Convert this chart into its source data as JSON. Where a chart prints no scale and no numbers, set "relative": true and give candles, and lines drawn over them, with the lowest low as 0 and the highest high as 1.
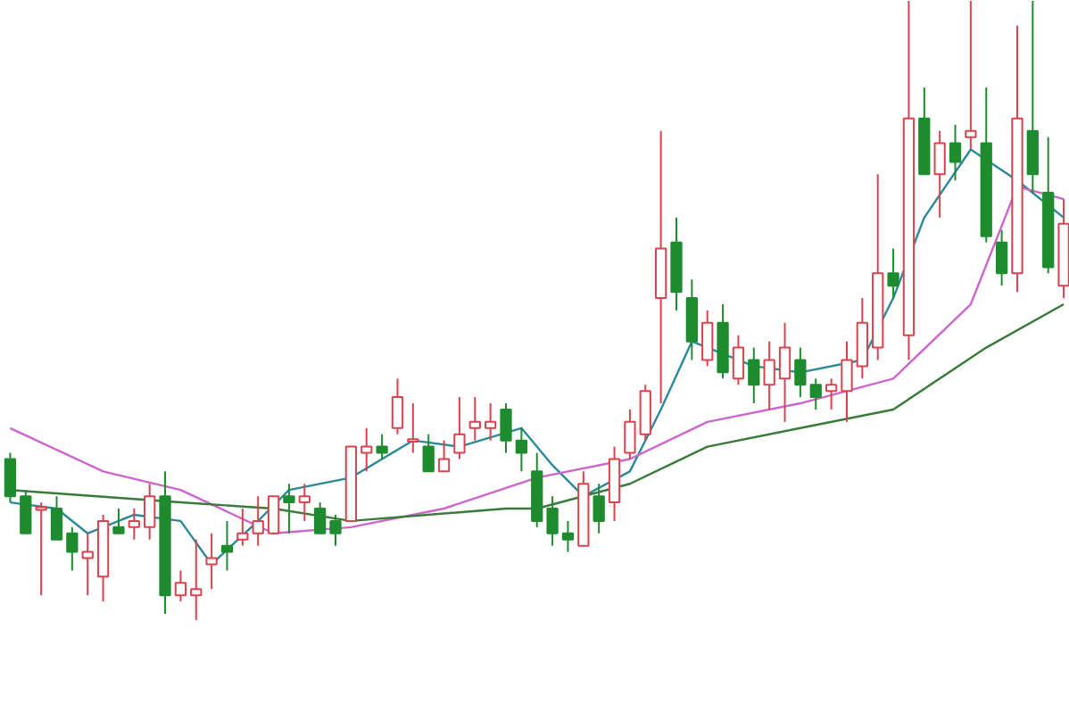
{
  "chart_data": {
    "type": "candlestick",
    "relative": true,
    "categories": [
      null,
      null,
      null,
      null,
      null,
      null,
      null,
      null,
      null,
      null,
      null,
      null,
      null,
      null,
      null,
      null,
      null,
      null,
      null,
      null,
      null,
      null,
      null,
      null,
      null,
      null,
      null,
      null,
      null,
      null,
      null,
      null,
      null,
      null,
      null,
      null,
      null,
      null,
      null,
      null,
      null,
      null,
      null,
      null,
      null,
      null,
      null,
      null,
      null,
      null,
      null,
      null,
      null,
      null,
      null,
      null,
      null,
      null,
      null,
      null,
      null,
      null,
      null,
      null,
      null,
      null,
      null,
      null,
      null
    ],
    "ohlc": [
      [
        0.26,
        0.27,
        0.19,
        0.2
      ],
      [
        0.2,
        0.21,
        0.14,
        0.14
      ],
      [
        0.18,
        0.19,
        0.04,
        0.18
      ],
      [
        0.18,
        0.2,
        0.13,
        0.13
      ],
      [
        0.14,
        0.15,
        0.08,
        0.11
      ],
      [
        0.1,
        0.14,
        0.04,
        0.11
      ],
      [
        0.07,
        0.17,
        0.03,
        0.16
      ],
      [
        0.15,
        0.18,
        0.14,
        0.14
      ],
      [
        0.15,
        0.18,
        0.13,
        0.16
      ],
      [
        0.15,
        0.22,
        0.13,
        0.2
      ],
      [
        0.2,
        0.24,
        0.01,
        0.04
      ],
      [
        0.04,
        0.08,
        0.03,
        0.06
      ],
      [
        0.04,
        0.13,
        0,
        0.05
      ],
      [
        0.09,
        0.14,
        0.05,
        0.1
      ],
      [
        0.12,
        0.16,
        0.08,
        0.11
      ],
      [
        0.13,
        0.18,
        0.12,
        0.14
      ],
      [
        0.14,
        0.2,
        0.12,
        0.16
      ],
      [
        0.14,
        0.2,
        0.14,
        0.2
      ],
      [
        0.2,
        0.22,
        0.14,
        0.19
      ],
      [
        0.19,
        0.22,
        0.16,
        0.2
      ],
      [
        0.18,
        0.19,
        0.14,
        0.14
      ],
      [
        0.16,
        0.17,
        0.12,
        0.14
      ],
      [
        0.16,
        0.28,
        0.16,
        0.28
      ],
      [
        0.27,
        0.31,
        0.24,
        0.28
      ],
      [
        0.28,
        0.3,
        0.26,
        0.27
      ],
      [
        0.31,
        0.39,
        0.3,
        0.36
      ],
      [
        0.29,
        0.35,
        0.27,
        0.29
      ],
      [
        0.28,
        0.3,
        0.24,
        0.24
      ],
      [
        0.24,
        0.29,
        0.24,
        0.26
      ],
      [
        0.27,
        0.36,
        0.26,
        0.3
      ],
      [
        0.31,
        0.36,
        0.29,
        0.32
      ],
      [
        0.31,
        0.35,
        0.29,
        0.32
      ],
      [
        0.34,
        0.35,
        0.27,
        0.29
      ],
      [
        0.29,
        0.31,
        0.24,
        0.27
      ],
      [
        0.24,
        0.27,
        0.15,
        0.16
      ],
      [
        0.18,
        0.2,
        0.12,
        0.14
      ],
      [
        0.14,
        0.16,
        0.11,
        0.13
      ],
      [
        0.12,
        0.24,
        0.12,
        0.22
      ],
      [
        0.2,
        0.22,
        0.14,
        0.16
      ],
      [
        0.19,
        0.28,
        0.16,
        0.26
      ],
      [
        0.27,
        0.34,
        0.26,
        0.32
      ],
      [
        0.3,
        0.38,
        0.29,
        0.37
      ],
      [
        0.52,
        0.79,
        0.35,
        0.6
      ],
      [
        0.61,
        0.65,
        0.5,
        0.53
      ],
      [
        0.52,
        0.55,
        0.42,
        0.45
      ],
      [
        0.42,
        0.5,
        0.41,
        0.48
      ],
      [
        0.48,
        0.51,
        0.39,
        0.4
      ],
      [
        0.39,
        0.46,
        0.38,
        0.44
      ],
      [
        0.42,
        0.44,
        0.35,
        0.38
      ],
      [
        0.38,
        0.45,
        0.34,
        0.42
      ],
      [
        0.39,
        0.48,
        0.32,
        0.44
      ],
      [
        0.42,
        0.44,
        0.36,
        0.38
      ],
      [
        0.38,
        0.39,
        0.34,
        0.36
      ],
      [
        0.37,
        0.39,
        0.34,
        0.38
      ],
      [
        0.37,
        0.45,
        0.32,
        0.42
      ],
      [
        0.41,
        0.52,
        0.39,
        0.48
      ],
      [
        0.44,
        0.72,
        0.42,
        0.56
      ],
      [
        0.56,
        0.6,
        0.52,
        0.54
      ],
      [
        0.46,
        1,
        0.42,
        0.81
      ],
      [
        0.81,
        0.86,
        0.72,
        0.72
      ],
      [
        0.72,
        0.79,
        0.65,
        0.77
      ],
      [
        0.77,
        0.8,
        0.71,
        0.74
      ],
      [
        0.78,
        1,
        0.76,
        0.79
      ],
      [
        0.77,
        0.86,
        0.61,
        0.62
      ],
      [
        0.61,
        0.63,
        0.54,
        0.56
      ],
      [
        0.56,
        0.96,
        0.53,
        0.81
      ],
      [
        0.79,
        1,
        0.69,
        0.72
      ],
      [
        0.69,
        0.78,
        0.56,
        0.57
      ],
      [
        0.54,
        0.68,
        0.52,
        0.64
      ]
    ],
    "colors": [
      "#1e8c2e",
      "#1e8c2e",
      "#d9434f",
      "#1e8c2e",
      "#1e8c2e",
      "#d9434f",
      "#d9434f",
      "#1e8c2e",
      "#d9434f",
      "#d9434f",
      "#1e8c2e",
      "#d9434f",
      "#d9434f",
      "#d9434f",
      "#1e8c2e",
      "#d9434f",
      "#d9434f",
      "#d9434f",
      "#1e8c2e",
      "#d9434f",
      "#1e8c2e",
      "#1e8c2e",
      "#d9434f",
      "#d9434f",
      "#1e8c2e",
      "#d9434f",
      "#d9434f",
      "#1e8c2e",
      "#d9434f",
      "#d9434f",
      "#d9434f",
      "#d9434f",
      "#1e8c2e",
      "#1e8c2e",
      "#1e8c2e",
      "#1e8c2e",
      "#1e8c2e",
      "#d9434f",
      "#1e8c2e",
      "#d9434f",
      "#d9434f",
      "#d9434f",
      "#d9434f",
      "#1e8c2e",
      "#1e8c2e",
      "#d9434f",
      "#1e8c2e",
      "#d9434f",
      "#1e8c2e",
      "#d9434f",
      "#d9434f",
      "#1e8c2e",
      "#1e8c2e",
      "#d9434f",
      "#d9434f",
      "#d9434f",
      "#d9434f",
      "#1e8c2e",
      "#d9434f",
      "#1e8c2e",
      "#d9434f",
      "#1e8c2e",
      "#d9434f",
      "#1e8c2e",
      "#1e8c2e",
      "#d9434f",
      "#1e8c2e",
      "#1e8c2e",
      "#d9434f"
    ],
    "series": [
      {
        "type": "line",
        "color": "#2a8a9a",
        "values": [
          0.19,
          null,
          null,
          0.18,
          null,
          0.14,
          null,
          null,
          0.17,
          null,
          null,
          0.16,
          null,
          0.09,
          null,
          null,
          0.16,
          null,
          0.21,
          null,
          null,
          null,
          0.23,
          null,
          null,
          null,
          0.29,
          null,
          null,
          0.28,
          null,
          null,
          null,
          0.31,
          null,
          0.25,
          null,
          0.2,
          null,
          null,
          0.24,
          null,
          0.34,
          null,
          0.45,
          null,
          null,
          null,
          0.41,
          null,
          null,
          0.4,
          null,
          null,
          null,
          0.42,
          null,
          0.52,
          null,
          0.65,
          null,
          null,
          0.76,
          null,
          null,
          0.71,
          null,
          null,
          0.65
        ]
      },
      {
        "type": "line",
        "color": "#cc66cc",
        "values": [
          0.31,
          null,
          null,
          null,
          null,
          null,
          0.24,
          null,
          null,
          null,
          null,
          0.21,
          null,
          null,
          null,
          null,
          null,
          0.14,
          null,
          null,
          null,
          null,
          0.15,
          null,
          null,
          null,
          null,
          null,
          0.18,
          null,
          null,
          null,
          null,
          null,
          0.23,
          null,
          null,
          null,
          null,
          null,
          0.26,
          null,
          null,
          null,
          null,
          0.32,
          null,
          null,
          null,
          null,
          null,
          0.35,
          null,
          null,
          null,
          null,
          null,
          0.39,
          null,
          null,
          null,
          null,
          0.51,
          null,
          null,
          0.7,
          null,
          null,
          0.68
        ]
      },
      {
        "type": "line",
        "color": "#3a7a3a",
        "values": [
          0.21,
          null,
          null,
          null,
          null,
          null,
          null,
          null,
          null,
          null,
          null,
          0.19,
          null,
          null,
          null,
          null,
          null,
          0.18,
          null,
          null,
          null,
          null,
          0.16,
          null,
          null,
          null,
          null,
          null,
          null,
          null,
          null,
          null,
          0.18,
          null,
          0.18,
          null,
          null,
          null,
          null,
          null,
          0.22,
          null,
          null,
          null,
          null,
          0.28,
          null,
          null,
          null,
          null,
          null,
          0.31,
          null,
          null,
          null,
          null,
          null,
          0.34,
          null,
          null,
          null,
          null,
          null,
          0.44,
          null,
          null,
          null,
          null,
          0.51
        ]
      }
    ]
  }
}
